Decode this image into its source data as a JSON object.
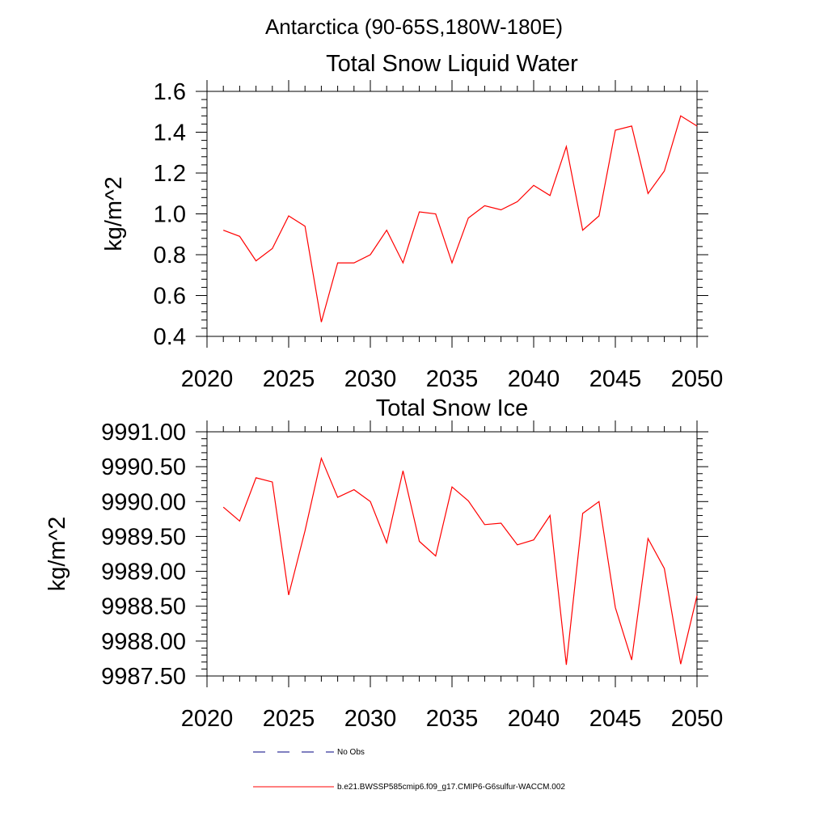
{
  "figure_title": "Antarctica (90-65S,180W-180E)",
  "colors": {
    "series": "#ff0000",
    "obs": "#000080",
    "axis": "#000000",
    "background": "#ffffff"
  },
  "legend": {
    "obs_label": "No Obs",
    "series_label": "b.e21.BWSSP585cmip6.f09_g17.CMIP6-G6sulfur-WACCM.002",
    "placement": "bottom-center"
  },
  "chart_data": [
    {
      "type": "line",
      "title": "Total Snow Liquid Water",
      "xlabel": "",
      "ylabel": "kg/m^2",
      "xlim": [
        2020,
        2050
      ],
      "ylim": [
        0.4,
        1.6
      ],
      "grid": false,
      "xticks": [
        2020,
        2025,
        2030,
        2035,
        2040,
        2045,
        2050
      ],
      "xtick_labels": [
        "2020",
        "2025",
        "2030",
        "2035",
        "2040",
        "2045",
        "2050"
      ],
      "yticks": [
        0.4,
        0.6,
        0.8,
        1.0,
        1.2,
        1.4,
        1.6
      ],
      "ytick_labels": [
        "0.4",
        "0.6",
        "0.8",
        "1.0",
        "1.2",
        "1.4",
        "1.6"
      ],
      "x": [
        2021,
        2022,
        2023,
        2024,
        2025,
        2026,
        2027,
        2028,
        2029,
        2030,
        2031,
        2032,
        2033,
        2034,
        2035,
        2036,
        2037,
        2038,
        2039,
        2040,
        2041,
        2042,
        2043,
        2044,
        2045,
        2046,
        2047,
        2048,
        2049,
        2050
      ],
      "series": [
        {
          "values": [
            0.92,
            0.89,
            0.77,
            0.83,
            0.99,
            0.94,
            0.47,
            0.76,
            0.76,
            0.8,
            0.92,
            0.76,
            1.01,
            1.0,
            0.76,
            0.98,
            1.04,
            1.02,
            1.06,
            1.14,
            1.09,
            1.33,
            0.92,
            0.99,
            1.41,
            1.43,
            1.1,
            1.21,
            1.48,
            1.43
          ]
        }
      ]
    },
    {
      "type": "line",
      "title": "Total Snow Ice",
      "xlabel": "",
      "ylabel": "kg/m^2",
      "xlim": [
        2020,
        2050
      ],
      "ylim": [
        9987.5,
        9991.0
      ],
      "grid": false,
      "xticks": [
        2020,
        2025,
        2030,
        2035,
        2040,
        2045,
        2050
      ],
      "xtick_labels": [
        "2020",
        "2025",
        "2030",
        "2035",
        "2040",
        "2045",
        "2050"
      ],
      "yticks": [
        9987.5,
        9988.0,
        9988.5,
        9989.0,
        9989.5,
        9990.0,
        9990.5,
        9991.0
      ],
      "ytick_labels": [
        "9987.50",
        "9988.00",
        "9988.50",
        "9989.00",
        "9989.50",
        "9990.00",
        "9990.50",
        "9991.00"
      ],
      "x": [
        2021,
        2022,
        2023,
        2024,
        2025,
        2026,
        2027,
        2028,
        2029,
        2030,
        2031,
        2032,
        2033,
        2034,
        2035,
        2036,
        2037,
        2038,
        2039,
        2040,
        2041,
        2042,
        2043,
        2044,
        2045,
        2046,
        2047,
        2048,
        2049,
        2050
      ],
      "series": [
        {
          "values": [
            9989.92,
            9989.72,
            9990.34,
            9990.28,
            9988.66,
            9989.58,
            9990.62,
            9990.06,
            9990.17,
            9990.0,
            9989.41,
            9990.44,
            9989.43,
            9989.22,
            9990.21,
            9990.01,
            9989.67,
            9989.69,
            9989.38,
            9989.45,
            9989.8,
            9987.66,
            9989.83,
            9990.0,
            9988.48,
            9987.73,
            9989.47,
            9989.04,
            9987.67,
            9988.65
          ]
        }
      ]
    }
  ]
}
